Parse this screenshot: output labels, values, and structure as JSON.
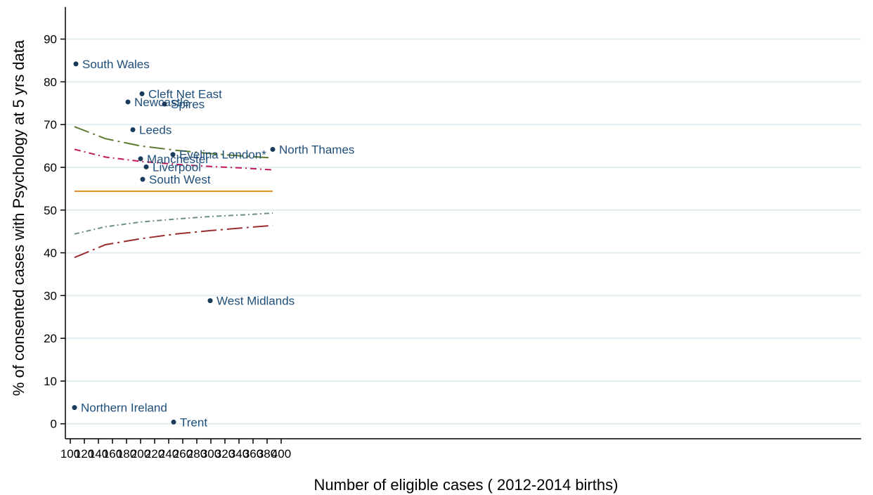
{
  "chart_data": {
    "type": "scatter",
    "title": "",
    "xlabel": "Number of eligible cases ( 2012-2014 births)",
    "ylabel": "% of consented cases with Psychology at 5 yrs data",
    "xlim": [
      93,
      1225
    ],
    "ylim": [
      -3.5,
      97.5
    ],
    "x_ticks": [
      100,
      120,
      140,
      160,
      180,
      200,
      220,
      240,
      260,
      280,
      300,
      320,
      340,
      360,
      380,
      400
    ],
    "y_ticks": [
      0,
      10,
      20,
      30,
      40,
      50,
      60,
      70,
      80,
      90
    ],
    "grid": "horizontal",
    "legend": "none",
    "colors": {
      "points": "#1a3a5c",
      "labels": "#1f4e79",
      "grid": "#e3eef2",
      "mean": "#e8922a",
      "upper_outer": "#5b7a2e",
      "upper_inner": "#c2185b",
      "lower_inner": "#6f8f86",
      "lower_outer": "#9b2d30"
    },
    "points": [
      {
        "label": "South Wales",
        "x": 108,
        "y": 84.2
      },
      {
        "label": "Cleft Net East",
        "x": 202,
        "y": 77.2
      },
      {
        "label": "Newcastle",
        "x": 182,
        "y": 75.3
      },
      {
        "label": "Spires",
        "x": 234,
        "y": 74.8
      },
      {
        "label": "Leeds",
        "x": 189,
        "y": 68.8
      },
      {
        "label": "North Thames",
        "x": 388,
        "y": 64.2
      },
      {
        "label": "Evelina London*",
        "x": 246,
        "y": 63
      },
      {
        "label": "Manchester",
        "x": 200,
        "y": 62
      },
      {
        "label": "Liverpool",
        "x": 208,
        "y": 60.1
      },
      {
        "label": "South West",
        "x": 203,
        "y": 57.2
      },
      {
        "label": "West Midlands",
        "x": 299,
        "y": 28.8
      },
      {
        "label": "Northern Ireland",
        "x": 106,
        "y": 3.8
      },
      {
        "label": "Trent",
        "x": 247,
        "y": 0.4
      }
    ],
    "reference_lines": [
      {
        "role": "mean",
        "style": "solid",
        "x": [
          106,
          388
        ],
        "y": [
          54.4,
          54.4
        ]
      },
      {
        "role": "upper-outer-limit",
        "style": "long-dash-dot",
        "x": [
          106,
          150,
          200,
          250,
          300,
          350,
          388
        ],
        "y": [
          69.5,
          66.7,
          65.0,
          64.0,
          63.2,
          62.6,
          62.2
        ]
      },
      {
        "role": "upper-inner-limit",
        "style": "dash-dot",
        "x": [
          106,
          150,
          200,
          250,
          300,
          350,
          388
        ],
        "y": [
          64.2,
          62.4,
          61.4,
          60.7,
          60.2,
          59.8,
          59.4
        ]
      },
      {
        "role": "lower-inner-limit",
        "style": "dotted-dash",
        "x": [
          106,
          150,
          200,
          250,
          300,
          350,
          388
        ],
        "y": [
          44.4,
          46.1,
          47.2,
          47.9,
          48.5,
          48.9,
          49.3
        ]
      },
      {
        "role": "lower-outer-limit",
        "style": "long-dash-dot",
        "x": [
          106,
          150,
          200,
          250,
          300,
          350,
          388
        ],
        "y": [
          38.9,
          41.9,
          43.3,
          44.4,
          45.2,
          45.9,
          46.4
        ]
      }
    ]
  }
}
